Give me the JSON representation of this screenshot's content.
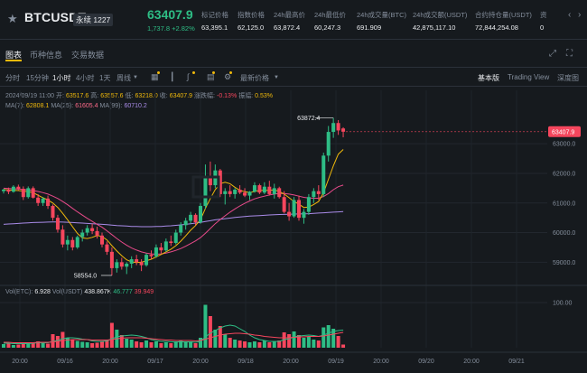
{
  "header": {
    "star_icon": "star-icon",
    "symbol": "BTCUSDT",
    "contract_type": "永续 1227",
    "last_price": "63407.9",
    "change": "1,737.8 +2.82%",
    "stats": [
      {
        "label": "标记价格",
        "value": "63,395.1"
      },
      {
        "label": "指数价格",
        "value": "62,125.0"
      },
      {
        "label": "24h最高价",
        "value": "63,872.4"
      },
      {
        "label": "24h最低价",
        "value": "60,247.3"
      },
      {
        "label": "24h成交量(BTC)",
        "value": "691.909"
      },
      {
        "label": "24h成交额(USDT)",
        "value": "42,875,117.10"
      },
      {
        "label": "合约持仓量(USDT)",
        "value": "72,844,254.08"
      },
      {
        "label": "资",
        "value": "0"
      }
    ]
  },
  "tabs": {
    "items": [
      "图表",
      "币种信息",
      "交易数据"
    ],
    "active": "图表"
  },
  "toolbar": {
    "intervals": [
      "分时",
      "15分钟",
      "1小时",
      "4小时",
      "1天",
      "周线"
    ],
    "active_interval": "1小时",
    "latest_price_label": "最新价格",
    "views": [
      "基本版",
      "Trading View",
      "深度图"
    ],
    "active_view": "基本版"
  },
  "info": {
    "ohlc": "2024/09/19 11:00  开: 63517.6  高: 63557.6  低: 63218.0  收: 63407.9  涨跌幅: -0.13%  振幅: 0.53%",
    "ohlc_parts": [
      {
        "t": "2024/09/19 11:00",
        "c": "#848e9c"
      },
      {
        "t": "开:",
        "c": "#848e9c"
      },
      {
        "t": "63517.6",
        "c": "#f0b90b"
      },
      {
        "t": "高:",
        "c": "#848e9c"
      },
      {
        "t": "63557.6",
        "c": "#f0b90b"
      },
      {
        "t": "低:",
        "c": "#848e9c"
      },
      {
        "t": "63218.0",
        "c": "#f0b90b"
      },
      {
        "t": "收:",
        "c": "#848e9c"
      },
      {
        "t": "63407.9",
        "c": "#f0b90b"
      },
      {
        "t": "涨跌幅:",
        "c": "#848e9c"
      },
      {
        "t": "-0.13%",
        "c": "#f6465d"
      },
      {
        "t": "振幅:",
        "c": "#848e9c"
      },
      {
        "t": "0.53%",
        "c": "#f0b90b"
      }
    ],
    "ma_parts": [
      {
        "t": "MA(7):",
        "c": "#848e9c"
      },
      {
        "t": "62808.1",
        "c": "#f0b90b"
      },
      {
        "t": "MA(25):",
        "c": "#848e9c"
      },
      {
        "t": "61605.4",
        "c": "#ff6b8a"
      },
      {
        "t": "MA(99):",
        "c": "#848e9c"
      },
      {
        "t": "60710.2",
        "c": "#a98be8"
      }
    ],
    "vol_parts": [
      {
        "t": "Vol(BTC):",
        "c": "#848e9c"
      },
      {
        "t": "6.928",
        "c": "#eaecef"
      },
      {
        "t": "Vol(USDT)",
        "c": "#848e9c"
      },
      {
        "t": "438.867K",
        "c": "#eaecef"
      },
      {
        "t": "46.777",
        "c": "#2ebd85"
      },
      {
        "t": "39.949",
        "c": "#f6465d"
      }
    ]
  },
  "colors": {
    "up": "#2ebd85",
    "down": "#f6465d",
    "ma7": "#f0b90b",
    "ma25": "#e84a8a",
    "ma99": "#a98be8",
    "price_tag_bg": "#f6465d"
  },
  "chart_data": {
    "type": "candlestick",
    "price_axis_ticks": [
      "63000.0",
      "62000.0",
      "61000.0",
      "60000.0",
      "59000.0"
    ],
    "volume_axis_ticks": [
      "100.00"
    ],
    "time_axis_ticks": [
      "20:00",
      "09/16",
      "20:00",
      "09/17",
      "20:00",
      "09/18",
      "20:00",
      "09/19",
      "20:00",
      "09/20",
      "20:00",
      "09/21"
    ],
    "ylim": [
      58400,
      64500
    ],
    "current_price_label": "63407.9",
    "current_price": 63407.9,
    "high_marker": {
      "label": "63872.4",
      "value": 63872.4
    },
    "low_marker": {
      "label": "58554.0",
      "value": 58554.0
    },
    "candles": [
      [
        61400,
        61480,
        61320,
        61450
      ],
      [
        61450,
        61520,
        61300,
        61380
      ],
      [
        61380,
        61600,
        61350,
        61550
      ],
      [
        61550,
        61620,
        61420,
        61480
      ],
      [
        61480,
        61560,
        61100,
        61200
      ],
      [
        61200,
        61560,
        61150,
        61500
      ],
      [
        61500,
        61560,
        61150,
        61180
      ],
      [
        61180,
        61300,
        60900,
        61000
      ],
      [
        61000,
        61200,
        60900,
        61150
      ],
      [
        61150,
        61250,
        60800,
        60900
      ],
      [
        60900,
        60950,
        60400,
        60500
      ],
      [
        60500,
        60600,
        60000,
        60100
      ],
      [
        60100,
        60250,
        59500,
        59600
      ],
      [
        59600,
        59900,
        59400,
        59750
      ],
      [
        59750,
        59850,
        59400,
        59500
      ],
      [
        59500,
        59900,
        59450,
        59850
      ],
      [
        59850,
        60100,
        59700,
        60000
      ],
      [
        60000,
        60250,
        59900,
        60150
      ],
      [
        60150,
        60300,
        59950,
        60050
      ],
      [
        60050,
        60200,
        59800,
        59900
      ],
      [
        59900,
        60000,
        59500,
        59600
      ],
      [
        59600,
        59700,
        59250,
        59350
      ],
      [
        59350,
        59500,
        58554,
        58800
      ],
      [
        58800,
        59100,
        58650,
        59000
      ],
      [
        59000,
        59150,
        58750,
        58850
      ],
      [
        58850,
        59000,
        58600,
        58950
      ],
      [
        58950,
        59200,
        58800,
        59100
      ],
      [
        59100,
        59250,
        58900,
        59000
      ],
      [
        59000,
        59100,
        58700,
        58900
      ],
      [
        58900,
        59300,
        58850,
        59250
      ],
      [
        59250,
        59400,
        59100,
        59200
      ],
      [
        59200,
        59600,
        59150,
        59500
      ],
      [
        59500,
        59650,
        59300,
        59400
      ],
      [
        59400,
        59800,
        59350,
        59700
      ],
      [
        59700,
        59900,
        59550,
        59650
      ],
      [
        59650,
        60100,
        59600,
        60000
      ],
      [
        60000,
        60350,
        59900,
        60250
      ],
      [
        60250,
        60500,
        60100,
        60400
      ],
      [
        60400,
        60700,
        60300,
        60600
      ],
      [
        60600,
        60650,
        60250,
        60350
      ],
      [
        60350,
        61000,
        60300,
        60900
      ],
      [
        60900,
        62300,
        60800,
        61900
      ],
      [
        61900,
        62400,
        61400,
        61600
      ],
      [
        61600,
        62300,
        61500,
        62100
      ],
      [
        62100,
        62150,
        61200,
        61300
      ],
      [
        61300,
        61500,
        60950,
        61400
      ],
      [
        61400,
        61600,
        61200,
        61300
      ],
      [
        61300,
        61500,
        61150,
        61450
      ],
      [
        61450,
        61600,
        61300,
        61350
      ],
      [
        61350,
        61500,
        61200,
        61250
      ],
      [
        61250,
        61400,
        61100,
        61380
      ],
      [
        61380,
        61700,
        61350,
        61600
      ],
      [
        61600,
        61650,
        61300,
        61350
      ],
      [
        61350,
        61700,
        61300,
        61550
      ],
      [
        61550,
        61750,
        61250,
        61300
      ],
      [
        61300,
        61650,
        61150,
        61500
      ],
      [
        61500,
        61550,
        61150,
        61200
      ],
      [
        61200,
        61400,
        60650,
        60700
      ],
      [
        60700,
        61000,
        60400,
        60550
      ],
      [
        60550,
        61200,
        60500,
        61100
      ],
      [
        61100,
        61250,
        60400,
        60500
      ],
      [
        60500,
        60800,
        60300,
        60700
      ],
      [
        60700,
        61300,
        60600,
        61200
      ],
      [
        61200,
        61500,
        61000,
        61400
      ],
      [
        61400,
        61600,
        61100,
        61300
      ],
      [
        61300,
        62700,
        61200,
        62600
      ],
      [
        62600,
        63600,
        62400,
        63400
      ],
      [
        63400,
        63872,
        63200,
        63700
      ],
      [
        63700,
        63800,
        63300,
        63450
      ],
      [
        63517,
        63557,
        63218,
        63407
      ]
    ],
    "ma7": [
      61450,
      61440,
      61430,
      61420,
      61400,
      61380,
      61350,
      61260,
      61180,
      61100,
      61000,
      60850,
      60650,
      60430,
      60200,
      59970,
      59820,
      59800,
      59840,
      59900,
      59870,
      59750,
      59560,
      59380,
      59220,
      59080,
      59010,
      58990,
      59000,
      59050,
      59100,
      59180,
      59260,
      59350,
      59440,
      59560,
      59710,
      59890,
      60080,
      60240,
      60440,
      60820,
      61150,
      61450,
      61650,
      61700,
      61650,
      61530,
      61430,
      61380,
      61350,
      61390,
      61430,
      61430,
      61430,
      61440,
      61390,
      61300,
      61180,
      61050,
      60960,
      60850,
      60860,
      60950,
      61050,
      61350,
      61800,
      62260,
      62650,
      62808
    ],
    "ma25": [
      61500,
      61490,
      61480,
      61470,
      61460,
      61440,
      61420,
      61390,
      61350,
      61300,
      61230,
      61150,
      61050,
      60940,
      60820,
      60700,
      60590,
      60480,
      60380,
      60280,
      60180,
      60060,
      59930,
      59800,
      59680,
      59570,
      59480,
      59410,
      59350,
      59310,
      59280,
      59270,
      59280,
      59310,
      59350,
      59400,
      59460,
      59540,
      59630,
      59720,
      59830,
      59980,
      60140,
      60300,
      60440,
      60570,
      60690,
      60800,
      60900,
      60990,
      61070,
      61140,
      61190,
      61230,
      61270,
      61300,
      61320,
      61320,
      61300,
      61270,
      61230,
      61190,
      61170,
      61160,
      61160,
      61220,
      61320,
      61450,
      61550,
      61605
    ],
    "ma99": [
      60280,
      60290,
      60300,
      60310,
      60320,
      60330,
      60340,
      60345,
      60350,
      60355,
      60360,
      60360,
      60355,
      60350,
      60340,
      60330,
      60320,
      60310,
      60300,
      60290,
      60280,
      60270,
      60255,
      60240,
      60230,
      60220,
      60210,
      60205,
      60200,
      60200,
      60200,
      60205,
      60210,
      60220,
      60230,
      60245,
      60260,
      60280,
      60300,
      60320,
      60345,
      60375,
      60400,
      60430,
      60450,
      60470,
      60490,
      60510,
      60525,
      60540,
      60555,
      60565,
      60575,
      60585,
      60595,
      60605,
      60610,
      60615,
      60620,
      60625,
      60630,
      60635,
      60640,
      60650,
      60660,
      60670,
      60680,
      60690,
      60700,
      60710
    ],
    "volume": [
      8,
      9,
      6,
      7,
      10,
      9,
      12,
      14,
      10,
      9,
      30,
      26,
      35,
      22,
      18,
      15,
      13,
      12,
      10,
      11,
      14,
      18,
      55,
      40,
      28,
      20,
      18,
      14,
      12,
      16,
      12,
      14,
      10,
      12,
      10,
      14,
      16,
      12,
      14,
      10,
      22,
      95,
      70,
      40,
      48,
      30,
      22,
      18,
      16,
      14,
      12,
      14,
      12,
      16,
      12,
      14,
      16,
      34,
      30,
      36,
      28,
      22,
      24,
      18,
      16,
      45,
      50,
      42,
      26,
      7
    ],
    "vol_ma1": [
      10,
      10,
      9,
      9,
      9,
      9,
      10,
      11,
      11,
      11,
      14,
      16,
      20,
      22,
      22,
      21,
      19,
      18,
      15,
      14,
      14,
      15,
      20,
      24,
      26,
      27,
      28,
      27,
      25,
      22,
      18,
      16,
      14,
      14,
      13,
      13,
      13,
      13,
      13,
      12,
      14,
      24,
      32,
      38,
      44,
      48,
      50,
      48,
      42,
      36,
      28,
      22,
      18,
      16,
      14,
      14,
      14,
      18,
      20,
      24,
      26,
      27,
      28,
      27,
      25,
      28,
      32,
      36,
      38,
      39
    ],
    "vol_ma2": [
      12,
      12,
      11,
      11,
      11,
      11,
      11,
      12,
      12,
      12,
      13,
      14,
      16,
      17,
      18,
      18,
      18,
      18,
      17,
      17,
      17,
      17,
      18,
      20,
      21,
      22,
      22,
      22,
      22,
      21,
      20,
      19,
      18,
      17,
      17,
      16,
      16,
      16,
      16,
      15,
      16,
      19,
      22,
      25,
      28,
      30,
      31,
      32,
      32,
      31,
      30,
      28,
      27,
      25,
      24,
      23,
      22,
      22,
      22,
      23,
      24,
      24,
      25,
      25,
      25,
      26,
      28,
      30,
      32,
      34
    ]
  }
}
